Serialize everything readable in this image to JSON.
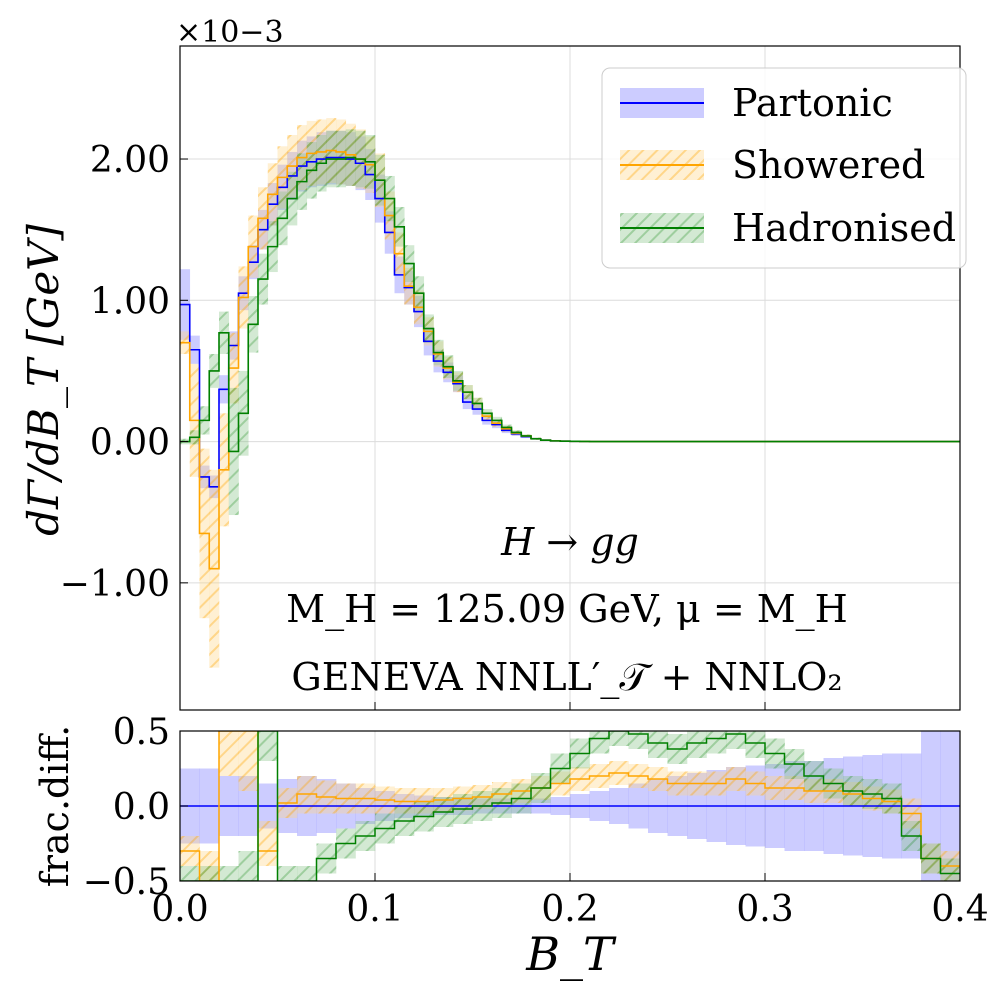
{
  "chart_data": [
    {
      "type": "line",
      "title": "",
      "xlabel": "",
      "ylabel": "dΓ/dB_T   [GeV]",
      "scale_label": "×10−3",
      "xlim": [
        0.0,
        0.4
      ],
      "ylim": [
        -1.9,
        2.8
      ],
      "yticks": [
        -1.0,
        0.0,
        1.0,
        2.0
      ],
      "ytick_labels": [
        "−1.00",
        "0.00",
        "1.00",
        "2.00"
      ],
      "grid": true,
      "legend_position": "top-right",
      "bin_width": 0.005,
      "annotations": [
        "H → gg",
        "M_H = 125.09 GeV,  μ = M_H",
        "GENEVA   NNLL′_𝒯 + NNLO₂"
      ],
      "series": [
        {
          "name": "Partonic",
          "color": "#0000ff",
          "band_fill": "#8080ff",
          "values": [
            0.97,
            0.65,
            -0.25,
            -0.32,
            0.37,
            0.68,
            1.05,
            1.27,
            1.5,
            1.68,
            1.8,
            1.88,
            1.95,
            1.98,
            2.0,
            2.01,
            2.01,
            2.0,
            1.97,
            1.89,
            1.72,
            1.48,
            1.18,
            1.09,
            0.92,
            0.71,
            0.57,
            0.49,
            0.41,
            0.28,
            0.23,
            0.15,
            0.12,
            0.08,
            0.055,
            0.035,
            0.02,
            0.01,
            0.005,
            0.003,
            0.002,
            0.001,
            0.0,
            0.0,
            0.0,
            0.0,
            0.0,
            0.0,
            0.0,
            0.0,
            0.0,
            0.0,
            0.0,
            0.0,
            0.0,
            0.0,
            0.0,
            0.0,
            0.0,
            0.0,
            0.0,
            0.0,
            0.0,
            0.0,
            0.0,
            0.0,
            0.0,
            0.0,
            0.0,
            0.0,
            0.0,
            0.0,
            0.0,
            0.0,
            0.0,
            0.0,
            0.0,
            0.0,
            0.0,
            0.0
          ],
          "band_halfwidth": [
            0.25,
            0.1,
            0.08,
            0.08,
            0.1,
            0.1,
            0.12,
            0.12,
            0.14,
            0.15,
            0.16,
            0.17,
            0.18,
            0.18,
            0.19,
            0.19,
            0.19,
            0.19,
            0.19,
            0.18,
            0.17,
            0.15,
            0.13,
            0.12,
            0.11,
            0.1,
            0.08,
            0.07,
            0.06,
            0.05,
            0.04,
            0.03,
            0.025,
            0.02,
            0.015,
            0.01,
            0.008,
            0.005,
            0.003,
            0.002,
            0.001,
            0.001,
            0.0,
            0.0,
            0.0,
            0.0,
            0.0,
            0.0,
            0.0,
            0.0,
            0.0,
            0.0,
            0.0,
            0.0,
            0.0,
            0.0,
            0.0,
            0.0,
            0.0,
            0.0,
            0.0,
            0.0,
            0.0,
            0.0,
            0.0,
            0.0,
            0.0,
            0.0,
            0.0,
            0.0,
            0.0,
            0.0,
            0.0,
            0.0,
            0.0,
            0.0,
            0.0,
            0.0,
            0.0,
            0.0
          ]
        },
        {
          "name": "Showered",
          "color": "#ffa500",
          "band_fill": "#ffd280",
          "values": [
            0.7,
            0.15,
            -0.65,
            -0.9,
            -0.2,
            0.52,
            1.02,
            1.38,
            1.58,
            1.75,
            1.87,
            1.95,
            2.01,
            2.04,
            2.05,
            2.06,
            2.05,
            2.03,
            2.0,
            1.96,
            1.85,
            1.6,
            1.33,
            1.1,
            0.95,
            0.78,
            0.62,
            0.52,
            0.42,
            0.35,
            0.27,
            0.18,
            0.13,
            0.09,
            0.06,
            0.04,
            0.02,
            0.01,
            0.005,
            0.003,
            0.002,
            0.001,
            0.0,
            0.0,
            0.0,
            0.0,
            0.0,
            0.0,
            0.0,
            0.0,
            0.0,
            0.0,
            0.0,
            0.0,
            0.0,
            0.0,
            0.0,
            0.0,
            0.0,
            0.0,
            0.0,
            0.0,
            0.0,
            0.0,
            0.0,
            0.0,
            0.0,
            0.0,
            0.0,
            0.0,
            0.0,
            0.0,
            0.0,
            0.0,
            0.0,
            0.0,
            0.0,
            0.0,
            0.0,
            0.0
          ],
          "band_halfwidth": [
            0.08,
            0.4,
            0.6,
            0.7,
            0.4,
            0.25,
            0.22,
            0.22,
            0.22,
            0.22,
            0.22,
            0.22,
            0.23,
            0.23,
            0.23,
            0.23,
            0.23,
            0.22,
            0.21,
            0.2,
            0.19,
            0.17,
            0.15,
            0.13,
            0.12,
            0.1,
            0.09,
            0.08,
            0.07,
            0.05,
            0.04,
            0.03,
            0.025,
            0.02,
            0.015,
            0.01,
            0.008,
            0.005,
            0.003,
            0.002,
            0.001,
            0.001,
            0.0,
            0.0,
            0.0,
            0.0,
            0.0,
            0.0,
            0.0,
            0.0,
            0.0,
            0.0,
            0.0,
            0.0,
            0.0,
            0.0,
            0.0,
            0.0,
            0.0,
            0.0,
            0.0,
            0.0,
            0.0,
            0.0,
            0.0,
            0.0,
            0.0,
            0.0,
            0.0,
            0.0,
            0.0,
            0.0,
            0.0,
            0.0,
            0.0,
            0.0,
            0.0,
            0.0,
            0.0,
            0.0
          ]
        },
        {
          "name": "Hadronised",
          "color": "#008000",
          "band_fill": "#80c080",
          "values": [
            0.0,
            0.03,
            0.15,
            0.5,
            0.77,
            -0.07,
            0.2,
            0.83,
            1.15,
            1.38,
            1.58,
            1.72,
            1.84,
            1.92,
            1.97,
            2.0,
            2.0,
            2.01,
            2.0,
            1.98,
            1.85,
            1.72,
            1.52,
            1.26,
            1.05,
            0.8,
            0.63,
            0.53,
            0.43,
            0.35,
            0.27,
            0.2,
            0.15,
            0.1,
            0.065,
            0.04,
            0.02,
            0.01,
            0.005,
            0.003,
            0.002,
            0.001,
            0.0,
            0.0,
            0.0,
            0.0,
            0.0,
            0.0,
            0.0,
            0.0,
            0.0,
            0.0,
            0.0,
            0.0,
            0.0,
            0.0,
            0.0,
            0.0,
            0.0,
            0.0,
            0.0,
            0.0,
            0.0,
            0.0,
            0.0,
            0.0,
            0.0,
            0.0,
            0.0,
            0.0,
            0.0,
            0.0,
            0.0,
            0.0,
            0.0,
            0.0,
            0.0,
            0.0,
            0.0,
            0.0
          ],
          "band_halfwidth": [
            0.02,
            0.05,
            0.1,
            0.12,
            0.15,
            0.45,
            0.3,
            0.2,
            0.18,
            0.18,
            0.19,
            0.19,
            0.2,
            0.2,
            0.2,
            0.2,
            0.2,
            0.2,
            0.2,
            0.19,
            0.18,
            0.16,
            0.14,
            0.13,
            0.12,
            0.1,
            0.09,
            0.08,
            0.07,
            0.05,
            0.04,
            0.03,
            0.025,
            0.02,
            0.015,
            0.01,
            0.008,
            0.005,
            0.003,
            0.002,
            0.001,
            0.001,
            0.0,
            0.0,
            0.0,
            0.0,
            0.0,
            0.0,
            0.0,
            0.0,
            0.0,
            0.0,
            0.0,
            0.0,
            0.0,
            0.0,
            0.0,
            0.0,
            0.0,
            0.0,
            0.0,
            0.0,
            0.0,
            0.0,
            0.0,
            0.0,
            0.0,
            0.0,
            0.0,
            0.0,
            0.0,
            0.0,
            0.0,
            0.0,
            0.0,
            0.0,
            0.0,
            0.0,
            0.0,
            0.0
          ]
        }
      ]
    },
    {
      "type": "line",
      "title": "",
      "xlabel": "B_T",
      "ylabel": "frac.diff.",
      "xlim": [
        0.0,
        0.4
      ],
      "ylim": [
        -0.5,
        0.5
      ],
      "xticks": [
        0.0,
        0.1,
        0.2,
        0.3,
        0.4
      ],
      "xtick_labels": [
        "0.0",
        "0.1",
        "0.2",
        "0.3",
        "0.4"
      ],
      "yticks": [
        -0.5,
        0.0,
        0.5
      ],
      "ytick_labels": [
        "−0.5",
        "0.0",
        "0.5"
      ],
      "grid": true,
      "bin_width": 0.01,
      "series": [
        {
          "name": "Partonic",
          "color": "#0000ff",
          "band_fill": "#8080ff",
          "values": [
            0,
            0,
            0,
            0,
            0,
            0,
            0,
            0,
            0,
            0,
            0,
            0,
            0,
            0,
            0,
            0,
            0,
            0,
            0,
            0,
            0,
            0,
            0,
            0,
            0,
            0,
            0,
            0,
            0,
            0,
            0,
            0,
            0,
            0,
            0,
            0,
            0,
            0,
            0,
            0
          ],
          "band_low": [
            -0.25,
            -0.25,
            -0.2,
            -0.2,
            -0.15,
            -0.18,
            -0.2,
            -0.18,
            -0.15,
            -0.12,
            -0.1,
            -0.08,
            -0.07,
            -0.06,
            -0.06,
            -0.05,
            -0.05,
            -0.05,
            -0.05,
            -0.06,
            -0.08,
            -0.1,
            -0.12,
            -0.15,
            -0.18,
            -0.2,
            -0.22,
            -0.24,
            -0.26,
            -0.27,
            -0.28,
            -0.3,
            -0.3,
            -0.32,
            -0.33,
            -0.34,
            -0.35,
            -0.35,
            -0.5,
            -0.5
          ],
          "band_high": [
            0.25,
            0.25,
            0.2,
            0.2,
            0.15,
            0.18,
            0.2,
            0.18,
            0.15,
            0.12,
            0.1,
            0.08,
            0.07,
            0.06,
            0.06,
            0.05,
            0.05,
            0.05,
            0.05,
            0.06,
            0.08,
            0.1,
            0.12,
            0.15,
            0.18,
            0.2,
            0.22,
            0.24,
            0.26,
            0.27,
            0.28,
            0.3,
            0.3,
            0.32,
            0.33,
            0.34,
            0.35,
            0.35,
            0.5,
            0.5
          ]
        },
        {
          "name": "Showered",
          "color": "#ffa500",
          "band_fill": "#ffd280",
          "values": [
            -0.3,
            -0.5,
            0.5,
            0.5,
            -0.3,
            0.02,
            0.08,
            0.06,
            0.05,
            0.05,
            0.04,
            0.03,
            0.03,
            0.04,
            0.05,
            0.06,
            0.08,
            0.1,
            0.12,
            0.15,
            0.18,
            0.2,
            0.22,
            0.2,
            0.18,
            0.15,
            0.15,
            0.15,
            0.18,
            0.15,
            0.12,
            0.12,
            0.1,
            0.1,
            0.08,
            0.05,
            0.03,
            -0.05,
            -0.35,
            -0.4
          ],
          "band_low": [
            -0.4,
            -0.5,
            0.2,
            0.1,
            -0.4,
            -0.08,
            -0.05,
            -0.05,
            -0.05,
            -0.05,
            -0.05,
            -0.05,
            -0.05,
            -0.04,
            -0.03,
            -0.02,
            0.0,
            0.02,
            0.04,
            0.07,
            0.1,
            0.12,
            0.14,
            0.12,
            0.1,
            0.07,
            0.07,
            0.07,
            0.1,
            0.07,
            0.04,
            0.04,
            0.02,
            0.02,
            0.0,
            -0.03,
            -0.05,
            -0.15,
            -0.45,
            -0.5
          ],
          "band_high": [
            -0.2,
            -0.3,
            0.5,
            0.5,
            -0.1,
            0.12,
            0.2,
            0.17,
            0.15,
            0.15,
            0.13,
            0.12,
            0.12,
            0.12,
            0.13,
            0.14,
            0.16,
            0.18,
            0.2,
            0.23,
            0.26,
            0.28,
            0.3,
            0.28,
            0.26,
            0.23,
            0.23,
            0.23,
            0.26,
            0.23,
            0.2,
            0.2,
            0.18,
            0.18,
            0.16,
            0.13,
            0.11,
            0.05,
            -0.25,
            -0.3
          ]
        },
        {
          "name": "Hadronised",
          "color": "#008000",
          "band_fill": "#80c080",
          "values": [
            -0.5,
            -0.5,
            -0.5,
            -0.5,
            0.5,
            -0.5,
            -0.5,
            -0.35,
            -0.25,
            -0.2,
            -0.15,
            -0.1,
            -0.07,
            -0.04,
            -0.02,
            0.0,
            0.02,
            0.05,
            0.12,
            0.25,
            0.35,
            0.45,
            0.5,
            0.48,
            0.42,
            0.38,
            0.42,
            0.45,
            0.48,
            0.42,
            0.35,
            0.28,
            0.2,
            0.15,
            0.1,
            0.08,
            0.05,
            -0.2,
            -0.35,
            -0.45
          ],
          "band_low": [
            -0.5,
            -0.5,
            -0.5,
            -0.5,
            0.3,
            -0.5,
            -0.5,
            -0.45,
            -0.35,
            -0.3,
            -0.25,
            -0.2,
            -0.17,
            -0.14,
            -0.12,
            -0.1,
            -0.08,
            -0.05,
            0.02,
            0.15,
            0.25,
            0.35,
            0.4,
            0.38,
            0.32,
            0.28,
            0.32,
            0.35,
            0.38,
            0.32,
            0.25,
            0.18,
            0.1,
            0.05,
            0.0,
            -0.02,
            -0.05,
            -0.3,
            -0.45,
            -0.5
          ],
          "band_high": [
            -0.4,
            -0.4,
            -0.4,
            -0.3,
            0.5,
            -0.4,
            -0.4,
            -0.25,
            -0.15,
            -0.1,
            -0.05,
            0.0,
            0.03,
            0.06,
            0.08,
            0.1,
            0.12,
            0.15,
            0.22,
            0.35,
            0.45,
            0.5,
            0.5,
            0.5,
            0.5,
            0.48,
            0.5,
            0.5,
            0.5,
            0.5,
            0.45,
            0.38,
            0.3,
            0.25,
            0.2,
            0.18,
            0.15,
            -0.1,
            -0.25,
            -0.35
          ]
        }
      ]
    }
  ]
}
